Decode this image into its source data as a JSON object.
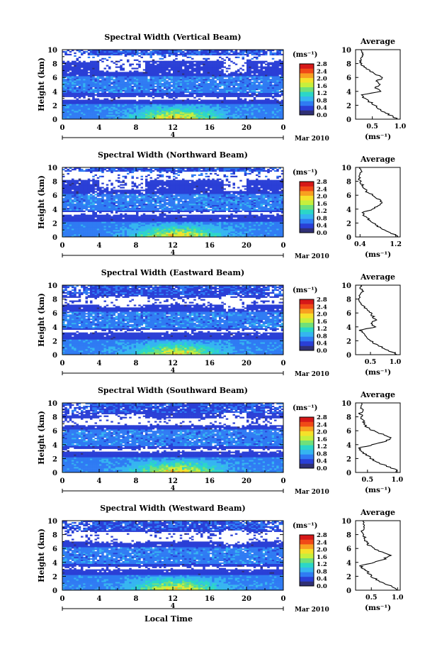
{
  "figure": {
    "common": {
      "ylabel": "Height (km)",
      "date_label": "Mar 2010",
      "day_label": "4",
      "local_time_label": "Local Time",
      "unit_label": "(ms⁻¹)",
      "average_title": "Average",
      "x_ticks": [
        "0",
        "4",
        "8",
        "12",
        "16",
        "20",
        "0"
      ],
      "y_ticks": [
        "0",
        "2",
        "4",
        "6",
        "8",
        "10"
      ],
      "colorbar_ticks": [
        "0.0",
        "0.4",
        "0.8",
        "1.2",
        "1.6",
        "2.0",
        "2.4",
        "2.8"
      ],
      "colorbar_colors": [
        "#303075",
        "#2a3fd6",
        "#2f7bf3",
        "#35b5f0",
        "#2bd6c8",
        "#6fe07a",
        "#c6ef3d",
        "#f5e12a",
        "#f8a020",
        "#f04a17",
        "#d61818"
      ]
    }
  },
  "chart_data": [
    {
      "type": "heatmap",
      "title": "Spectral Width (Vertical Beam)",
      "xlabel": "",
      "ylabel": "Height (km)",
      "xlim": [
        0,
        24
      ],
      "ylim": [
        0,
        10
      ],
      "colorbar_label": "(ms⁻¹)",
      "colorbar_range": [
        0.0,
        2.8
      ],
      "gap_bands_km": [
        [
          8.4,
          9.2
        ],
        [
          2.9,
          3.3
        ]
      ],
      "average_profile": {
        "title": "Average",
        "xlabel": "(ms⁻¹)",
        "xlim": [
          0.2,
          1.0
        ],
        "x_ticks": [
          "0.5",
          "1.0"
        ],
        "height_km": [
          0.0,
          0.5,
          1.0,
          1.5,
          2.0,
          2.5,
          3.0,
          3.5,
          4.0,
          4.5,
          5.0,
          5.5,
          6.0,
          6.5,
          7.0,
          7.5,
          8.0,
          8.5,
          9.0,
          9.5,
          10.0
        ],
        "value": [
          0.95,
          0.85,
          0.7,
          0.6,
          0.55,
          0.45,
          0.35,
          0.28,
          0.65,
          0.55,
          0.62,
          0.58,
          0.7,
          0.55,
          0.45,
          0.35,
          0.3,
          0.28,
          0.3,
          0.35,
          0.3
        ]
      }
    },
    {
      "type": "heatmap",
      "title": "Spectral Width (Northward Beam)",
      "xlabel": "",
      "ylabel": "Height (km)",
      "xlim": [
        0,
        24
      ],
      "ylim": [
        0,
        10
      ],
      "colorbar_label": "(ms⁻¹)",
      "colorbar_range": [
        0.0,
        2.8
      ],
      "gap_bands_km": [
        [
          8.2,
          9.3
        ],
        [
          3.2,
          3.5
        ]
      ],
      "average_profile": {
        "title": "Average",
        "xlabel": "(ms⁻¹)",
        "xlim": [
          0.3,
          1.3
        ],
        "x_ticks": [
          "0.4",
          "1.2"
        ],
        "height_km": [
          0.0,
          0.5,
          1.0,
          1.5,
          2.0,
          2.5,
          3.0,
          3.5,
          4.0,
          4.5,
          5.0,
          5.5,
          6.0,
          6.5,
          7.0,
          7.5,
          8.0,
          8.5,
          9.0,
          9.5,
          10.0
        ],
        "value": [
          1.25,
          1.1,
          0.95,
          0.8,
          0.7,
          0.6,
          0.5,
          0.45,
          0.7,
          0.8,
          0.9,
          0.8,
          0.7,
          0.55,
          0.5,
          0.45,
          0.4,
          0.38,
          0.4,
          0.45,
          0.4
        ]
      }
    },
    {
      "type": "heatmap",
      "title": "Spectral Width (Eastward Beam)",
      "xlabel": "",
      "ylabel": "Height (km)",
      "xlim": [
        0,
        24
      ],
      "ylim": [
        0,
        10
      ],
      "colorbar_label": "(ms⁻¹)",
      "colorbar_range": [
        0.0,
        2.8
      ],
      "gap_bands_km": [
        [
          7.3,
          8.2
        ],
        [
          3.2,
          3.6
        ]
      ],
      "average_profile": {
        "title": "Average",
        "xlabel": "(ms⁻¹)",
        "xlim": [
          0.2,
          1.1
        ],
        "x_ticks": [
          "0.5",
          "1.0"
        ],
        "height_km": [
          0.0,
          0.5,
          1.0,
          1.5,
          2.0,
          2.5,
          3.0,
          3.5,
          4.0,
          4.5,
          5.0,
          5.5,
          6.0,
          6.5,
          7.0,
          7.5,
          8.0,
          8.5,
          9.0,
          9.5,
          10.0
        ],
        "value": [
          1.05,
          0.9,
          0.75,
          0.6,
          0.5,
          0.45,
          0.35,
          0.3,
          0.6,
          0.5,
          0.6,
          0.55,
          0.5,
          0.42,
          0.35,
          0.3,
          0.28,
          0.3,
          0.35,
          0.3,
          0.3
        ]
      }
    },
    {
      "type": "heatmap",
      "title": "Spectral Width (Southward Beam)",
      "xlabel": "",
      "ylabel": "Height (km)",
      "xlim": [
        0,
        24
      ],
      "ylim": [
        0,
        10
      ],
      "colorbar_label": "(ms⁻¹)",
      "colorbar_range": [
        0.0,
        2.8
      ],
      "gap_bands_km": [
        [
          6.8,
          7.8
        ],
        [
          3.1,
          3.4
        ]
      ],
      "average_profile": {
        "title": "Average",
        "xlabel": "(ms⁻¹)",
        "xlim": [
          0.3,
          1.05
        ],
        "x_ticks": [
          "0.5",
          "1.0"
        ],
        "height_km": [
          0.0,
          0.5,
          1.0,
          1.5,
          2.0,
          2.5,
          3.0,
          3.5,
          4.0,
          4.5,
          5.0,
          5.5,
          6.0,
          6.5,
          7.0,
          7.5,
          8.0,
          8.5,
          9.0,
          9.5,
          10.0
        ],
        "value": [
          1.0,
          0.95,
          0.8,
          0.65,
          0.55,
          0.5,
          0.4,
          0.35,
          0.6,
          0.8,
          0.9,
          0.75,
          0.6,
          0.5,
          0.45,
          0.42,
          0.4,
          0.38,
          0.42,
          0.4,
          0.4
        ]
      }
    },
    {
      "type": "heatmap",
      "title": "Spectral Width (Westward Beam)",
      "xlabel": "Local Time",
      "ylabel": "Height (km)",
      "xlim": [
        0,
        24
      ],
      "ylim": [
        0,
        10
      ],
      "colorbar_label": "(ms⁻¹)",
      "colorbar_range": [
        0.0,
        2.8
      ],
      "gap_bands_km": [
        [
          6.9,
          8.3
        ],
        [
          3.1,
          3.4
        ]
      ],
      "average_profile": {
        "title": "Average",
        "xlabel": "(ms⁻¹)",
        "xlim": [
          0.2,
          1.05
        ],
        "x_ticks": [
          "0.5",
          "1.0"
        ],
        "height_km": [
          0.0,
          0.5,
          1.0,
          1.5,
          2.0,
          2.5,
          3.0,
          3.5,
          4.0,
          4.5,
          5.0,
          5.5,
          6.0,
          6.5,
          7.0,
          7.5,
          8.0,
          8.5,
          9.0,
          9.5,
          10.0
        ],
        "value": [
          1.0,
          0.9,
          0.75,
          0.6,
          0.5,
          0.45,
          0.35,
          0.3,
          0.55,
          0.75,
          0.85,
          0.7,
          0.55,
          0.45,
          0.4,
          0.38,
          0.35,
          0.33,
          0.38,
          0.35,
          0.35
        ]
      }
    }
  ]
}
